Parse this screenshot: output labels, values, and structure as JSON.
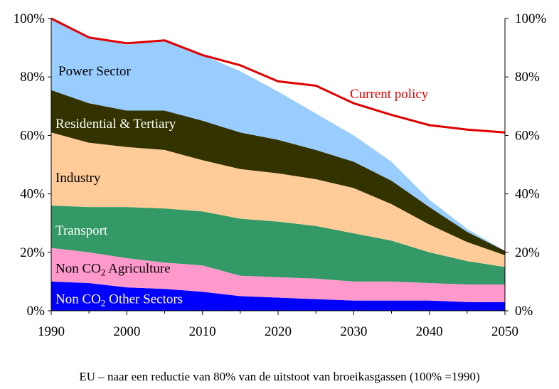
{
  "chart_data": {
    "type": "area",
    "stacked": true,
    "x": [
      1990,
      1995,
      2000,
      2005,
      2010,
      2015,
      2020,
      2025,
      2030,
      2035,
      2040,
      2045,
      2050
    ],
    "xticks": [
      "1990",
      "2000",
      "2010",
      "2020",
      "2030",
      "2040",
      "2050"
    ],
    "xlim": [
      1990,
      2050
    ],
    "ylim": [
      0,
      100
    ],
    "yticks_left": [
      "0%",
      "20%",
      "40%",
      "60%",
      "80%",
      "100%"
    ],
    "yticks_right": [
      "0%",
      "20%",
      "40%",
      "60%",
      "80%",
      "100%"
    ],
    "series": [
      {
        "name": "Non CO2 Other Sectors",
        "label_main": "Non CO",
        "label_sub": "2",
        "label_tail": " Other Sectors",
        "color": "#0000ff",
        "label_color": "#ffffff",
        "values": [
          10,
          9.5,
          8,
          7.5,
          6.5,
          5,
          4.5,
          4,
          3.5,
          3.5,
          3.5,
          3,
          3
        ]
      },
      {
        "name": "Non CO2 Agriculture",
        "label_main": "Non CO",
        "label_sub": "2",
        "label_tail": " Agriculture",
        "color": "#ff99cc",
        "label_color": "#000000",
        "values": [
          11.5,
          10.5,
          10,
          9,
          9,
          7,
          7,
          7,
          6.5,
          6.5,
          6,
          6,
          6
        ]
      },
      {
        "name": "Transport",
        "label_main": "Transport",
        "color": "#339966",
        "label_color": "#ffffff",
        "values": [
          14.5,
          15.5,
          17.5,
          18.5,
          18.5,
          19.5,
          19,
          18,
          16.5,
          14,
          10.5,
          8,
          6
        ]
      },
      {
        "name": "Industry",
        "label_main": "Industry",
        "color": "#ffcc99",
        "label_color": "#000000",
        "values": [
          25,
          22,
          20.5,
          20,
          17.5,
          17,
          16.5,
          16,
          15.5,
          12.5,
          9.5,
          6.5,
          4
        ]
      },
      {
        "name": "Residential & Tertiary",
        "label_main": "Residential & Tertiary",
        "color": "#333300",
        "label_color": "#ffffff",
        "values": [
          14.5,
          13.5,
          12.5,
          13.5,
          13.5,
          12.5,
          11.5,
          10,
          9,
          8,
          6,
          3.5,
          1.5
        ]
      },
      {
        "name": "Power Sector",
        "label_main": "Power Sector",
        "color": "#99ccff",
        "label_color": "#000000",
        "values": [
          24.5,
          22.5,
          22.5,
          24,
          22.5,
          21,
          16.5,
          12.5,
          9,
          6.5,
          2.5,
          1,
          0
        ]
      }
    ],
    "policy_line": {
      "name": "Current policy",
      "color": "#e00000",
      "values": [
        100,
        93.5,
        91.5,
        92.5,
        87.5,
        84,
        78.5,
        77,
        71,
        67,
        63.5,
        62,
        61
      ]
    }
  },
  "caption": "EU – naar een reductie van 80% van de uitstoot van broeikasgassen  (100% =1990)"
}
